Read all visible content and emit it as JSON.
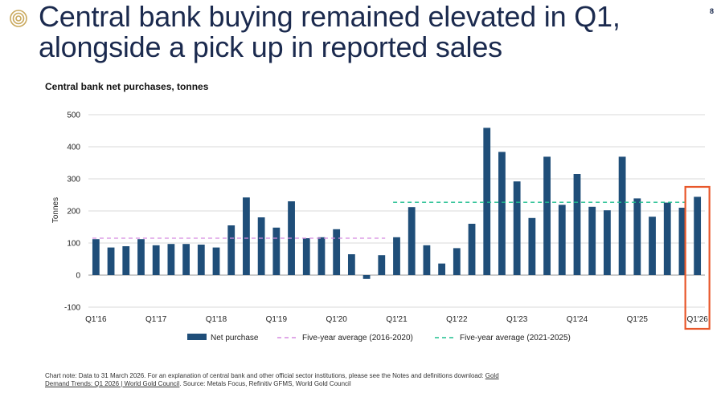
{
  "page": {
    "headline_line1": "Central bank buying remained elevated in Q1,",
    "headline_line2": "alongside a pick up in reported sales",
    "page_number": "8",
    "logo_icon": "concentric-rings-logo-icon",
    "accent_color": "#c9a85c"
  },
  "chart_title": "Central bank net purchases, tonnes",
  "chart_data": {
    "type": "bar",
    "ylabel": "Tonnes",
    "ylim": [
      -100,
      500
    ],
    "yticks": [
      -100,
      0,
      100,
      200,
      300,
      400,
      500
    ],
    "grid": true,
    "legend_position": "bottom",
    "x_tick_labels": [
      "Q1'16",
      "Q1'17",
      "Q1'18",
      "Q1'19",
      "Q1'20",
      "Q1'21",
      "Q1'22",
      "Q1'23",
      "Q1'24",
      "Q1'25",
      "Q1'26"
    ],
    "series": [
      {
        "name": "Net purchase",
        "color": "#1f4e79",
        "values": [
          112,
          86,
          90,
          112,
          93,
          97,
          97,
          95,
          86,
          155,
          242,
          180,
          148,
          230,
          115,
          118,
          143,
          65,
          -12,
          62,
          118,
          212,
          93,
          36,
          84,
          160,
          459,
          384,
          292,
          178,
          369,
          219,
          315,
          213,
          202,
          369,
          239,
          182,
          226,
          210,
          244
        ]
      }
    ],
    "averages": [
      {
        "name": "Five-year average (2016-2020)",
        "value": 115,
        "start_index": 0,
        "end_index": 19,
        "color": "#d58be0"
      },
      {
        "name": "Five-year average (2021-2025)",
        "value": 227,
        "start_index": 20,
        "end_index": 39,
        "color": "#1fbf8f"
      }
    ],
    "highlight": {
      "index": 40,
      "color": "#e8572a"
    }
  },
  "legend": {
    "net_purchase": "Net purchase",
    "avg_2016_2020": "Five-year average (2016-2020)",
    "avg_2021_2025": "Five-year average (2021-2025)"
  },
  "note": {
    "text": "Chart note: Data to 31 March 2026. For an explanation of central bank and other official sector institutions, please see the Notes and definitions download: ",
    "link1": "Gold",
    "link2": "Demand Trends: Q1 2026 | World Gold Council",
    "source": ". Source: Metals Focus, Refinitiv GFMS, World Gold Council"
  }
}
